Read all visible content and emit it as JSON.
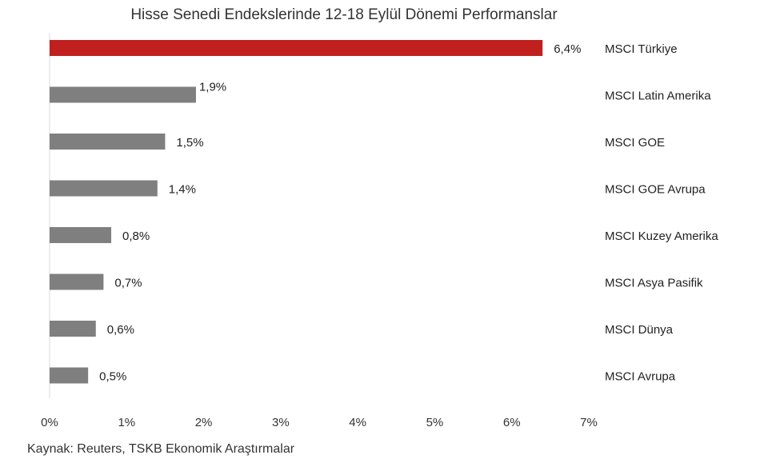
{
  "chart_data": {
    "type": "bar",
    "orientation": "horizontal",
    "title": "Hisse Senedi Endekslerinde 12-18 Eylül Dönemi Performanslar",
    "categories": [
      "MSCI Türkiye",
      "MSCI Latin Amerika",
      "MSCI GOE",
      "MSCI GOE Avrupa",
      "MSCI Kuzey Amerika",
      "MSCI Asya Pasifik",
      "MSCI Dünya",
      "MSCI Avrupa"
    ],
    "values": [
      6.4,
      1.9,
      1.5,
      1.4,
      0.8,
      0.7,
      0.6,
      0.5
    ],
    "value_labels": [
      "6,4%",
      "1,9%",
      "1,5%",
      "1,4%",
      "0,8%",
      "0,7%",
      "0,6%",
      "0,5%"
    ],
    "xlim": [
      0,
      7
    ],
    "x_ticks": [
      0,
      1,
      2,
      3,
      4,
      5,
      6,
      7
    ],
    "x_tick_labels": [
      "0%",
      "1%",
      "2%",
      "3%",
      "4%",
      "5%",
      "6%",
      "7%"
    ],
    "highlight_color": "#c0201e",
    "bar_color": "#7f7f7f",
    "grid": false,
    "legend": "none"
  },
  "source": "Kaynak: Reuters, TSKB Ekonomik Araştırmalar"
}
